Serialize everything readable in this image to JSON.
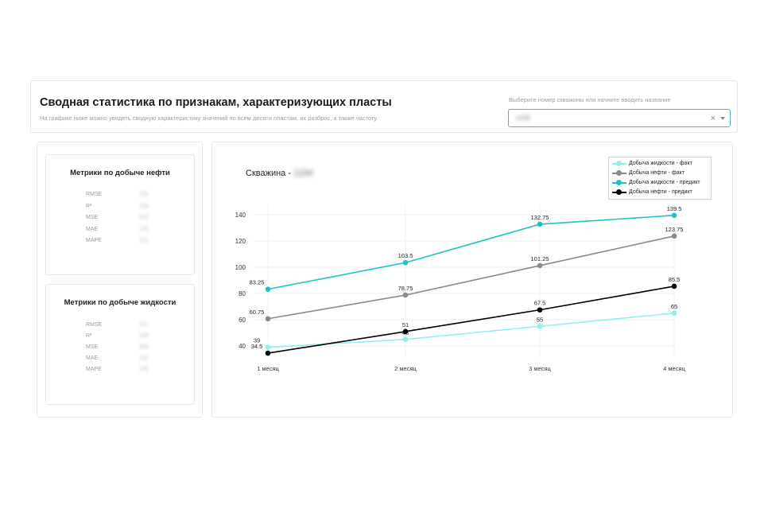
{
  "header": {
    "title": "Сводная статистика по признакам, характеризующих пласты",
    "subtitle": "На графике ниже можно увидеть сводную характеристику значений по всем десяти пластам, их разброс, а также частоту.",
    "select_label": "Выберите номер скважины или начните вводить название",
    "select_value": "1234",
    "clear_glyph": "×"
  },
  "oil_metrics": {
    "title": "Метрики по добыче нефти",
    "rows": [
      {
        "label": "RMSE",
        "value": "2.5"
      },
      {
        "label": "R²",
        "value": "0.9"
      },
      {
        "label": "MSE",
        "value": "6.3"
      },
      {
        "label": "MAE",
        "value": "1.9"
      },
      {
        "label": "MAPE",
        "value": "2.1"
      }
    ]
  },
  "liquid_metrics": {
    "title": "Метрики по добыче жидкости",
    "rows": [
      {
        "label": "RMSE",
        "value": "3.1"
      },
      {
        "label": "R²",
        "value": "0.9"
      },
      {
        "label": "MSE",
        "value": "9.6"
      },
      {
        "label": "MAE",
        "value": "2.4"
      },
      {
        "label": "MAPE",
        "value": "2.6"
      }
    ]
  },
  "chart_data": {
    "type": "line",
    "title_prefix": "Скважина - ",
    "title_value": "1234",
    "categories": [
      "1 месяц",
      "2 месяц",
      "3 месяц",
      "4 месяц"
    ],
    "ylim": [
      30,
      145
    ],
    "yticks": [
      40,
      60,
      80,
      100,
      120,
      140
    ],
    "grid": true,
    "legend_position": "top-right",
    "series": [
      {
        "name": "Добыча жидкости - факт",
        "color": "#8ef0ee",
        "values": [
          39,
          45,
          55,
          65
        ],
        "labels": [
          "39",
          "45",
          "55",
          "65"
        ]
      },
      {
        "name": "Добыча нефти - факт",
        "color": "#8a8a8a",
        "values": [
          60.75,
          78.75,
          101.25,
          123.75
        ],
        "labels": [
          "60.75",
          "78.75",
          "101.25",
          "123.75"
        ]
      },
      {
        "name": "Добыча жидкости - предикт",
        "color": "#1ec4c4",
        "values": [
          83.25,
          103.5,
          132.75,
          139.5
        ],
        "labels": [
          "83.25",
          "103.5",
          "132.75",
          "139.5"
        ]
      },
      {
        "name": "Добыча нефти - предикт",
        "color": "#000000",
        "values": [
          34.5,
          51,
          67.5,
          85.5
        ],
        "labels": [
          "34.5",
          "51",
          "67.5",
          "85.5"
        ]
      }
    ]
  }
}
